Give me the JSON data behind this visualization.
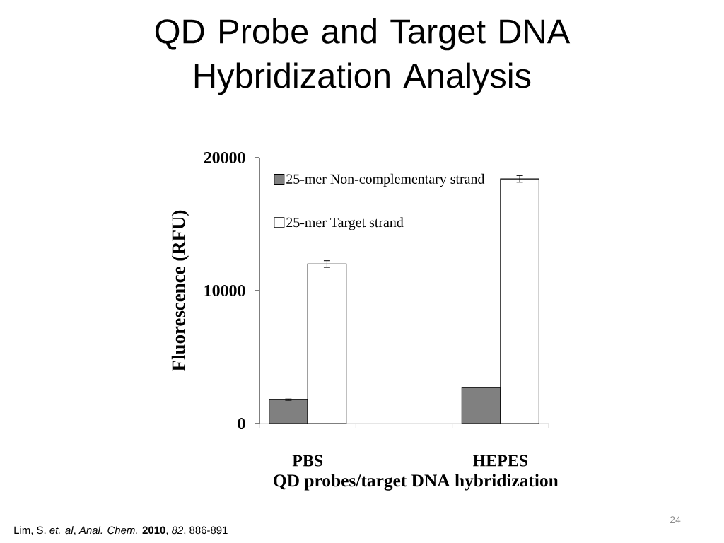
{
  "chart_data": {
    "type": "bar",
    "title": "QD Probe and Target DNA Hybridization Analysis",
    "xlabel": "QD probes/target DNA hybridization",
    "ylabel": "Fluorescence (RFU)",
    "categories": [
      "PBS",
      null,
      "HEPES"
    ],
    "series": [
      {
        "name": "25-mer Non-complementary strand",
        "color": "#808080",
        "values": [
          1800,
          null,
          2700
        ],
        "errors": [
          50,
          null,
          null
        ]
      },
      {
        "name": "25-mer Target strand",
        "color": "#ffffff",
        "values": [
          12000,
          null,
          18400
        ],
        "errors": [
          250,
          null,
          250
        ]
      }
    ],
    "ylim": [
      0,
      20000
    ],
    "yticks": [
      0,
      10000,
      20000
    ],
    "legend": "top left",
    "annotations": [
      "Lim, S. *et. al*, *Anal. Chem.* **2010**, *82*, 886-891",
      "24"
    ]
  }
}
